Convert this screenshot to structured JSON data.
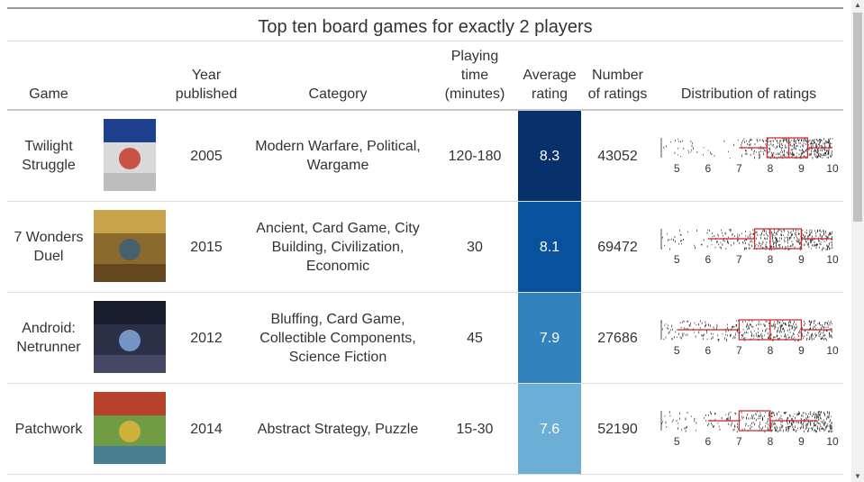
{
  "table": {
    "title": "Top ten board games for exactly 2 players",
    "headers": {
      "game": "Game",
      "year": [
        "Year",
        "published"
      ],
      "category": "Category",
      "playing_time": [
        "Playing",
        "time",
        "(minutes)"
      ],
      "average_rating": [
        "Average",
        "rating"
      ],
      "number_of_ratings": [
        "Number",
        "of ratings"
      ],
      "distribution": "Distribution of ratings"
    },
    "axis_ticks": [
      "5",
      "6",
      "7",
      "8",
      "9",
      "10"
    ],
    "rows": [
      {
        "game": [
          "Twilight",
          "Struggle"
        ],
        "year": "2005",
        "category": [
          "Modern Warfare, Political,",
          "Wargame"
        ],
        "playing_time": "120-180",
        "average_rating": "8.3",
        "rating_color": "#08306b",
        "number_of_ratings": "43052",
        "box": {
          "q1": 7.9,
          "median": 8.6,
          "q3": 9.2,
          "whisker_low": 7.0,
          "whisker_high": 10.0
        },
        "cover": "twilight-struggle-cover"
      },
      {
        "game": [
          "7 Wonders",
          "Duel"
        ],
        "year": "2015",
        "category": [
          "Ancient, Card Game, City",
          "Building, Civilization,",
          "Economic"
        ],
        "playing_time": "30",
        "average_rating": "8.1",
        "rating_color": "#08519c",
        "number_of_ratings": "69472",
        "box": {
          "q1": 7.5,
          "median": 8.0,
          "q3": 9.0,
          "whisker_low": 6.0,
          "whisker_high": 10.0
        },
        "cover": "7-wonders-duel-cover"
      },
      {
        "game": [
          "Android:",
          "Netrunner"
        ],
        "year": "2012",
        "category": [
          "Bluffing, Card Game,",
          "Collectible Components,",
          "Science Fiction"
        ],
        "playing_time": "45",
        "average_rating": "7.9",
        "rating_color": "#3182bd",
        "number_of_ratings": "27686",
        "box": {
          "q1": 7.0,
          "median": 8.0,
          "q3": 9.0,
          "whisker_low": 5.0,
          "whisker_high": 10.0
        },
        "cover": "android-netrunner-cover"
      },
      {
        "game": [
          "Patchwork"
        ],
        "year": "2014",
        "category": [
          "Abstract Strategy, Puzzle"
        ],
        "playing_time": "15-30",
        "average_rating": "7.6",
        "rating_color": "#6baed6",
        "number_of_ratings": "52190",
        "box": {
          "q1": 7.0,
          "median": 8.0,
          "q3": 8.0,
          "whisker_low": 6.0,
          "whisker_high": 9.5
        },
        "cover": "patchwork-cover"
      }
    ]
  }
}
